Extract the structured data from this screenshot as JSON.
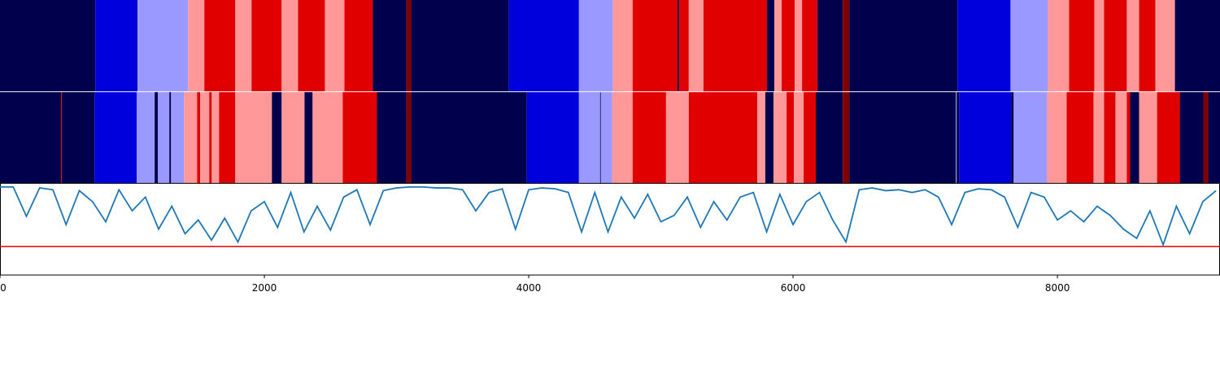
{
  "chart_data": [
    {
      "type": "segments",
      "xlim": [
        0,
        9230
      ],
      "class_colors": [
        "#00004c",
        "#0000dd",
        "#9999ff",
        "#ff9999",
        "#e00000",
        "#800000"
      ],
      "rows": [
        {
          "edges": [
            0,
            721,
            1041,
            1423,
            1546,
            1780,
            1903,
            2131,
            2255,
            2458,
            2606,
            2821,
            3074,
            3111,
            3850,
            4380,
            4638,
            4786,
            5125,
            5137,
            5211,
            5322,
            5803,
            5858,
            5914,
            6012,
            6068,
            6185,
            6376,
            6425,
            7244,
            7645,
            7928,
            8088,
            8279,
            8353,
            8525,
            8618,
            8741,
            8889,
            9230
          ],
          "classes": [
            0,
            1,
            2,
            3,
            4,
            3,
            4,
            3,
            4,
            3,
            4,
            0,
            5,
            0,
            1,
            2,
            3,
            4,
            0,
            4,
            3,
            4,
            0,
            3,
            4,
            3,
            4,
            0,
            5,
            0,
            1,
            2,
            3,
            4,
            3,
            4,
            3,
            4,
            3,
            0
          ]
        },
        {
          "edges": [
            0,
            462,
            468,
            715,
            1035,
            1170,
            1195,
            1281,
            1294,
            1392,
            1491,
            1515,
            1583,
            1602,
            1657,
            1780,
            2057,
            2131,
            2304,
            2365,
            2593,
            2852,
            3074,
            3111,
            3986,
            4380,
            4540,
            4546,
            4632,
            4786,
            5039,
            5211,
            5729,
            5790,
            5852,
            5951,
            6006,
            6080,
            6172,
            6376,
            6425,
            7232,
            7238,
            7256,
            7651,
            7669,
            7922,
            8070,
            8273,
            8353,
            8439,
            8525,
            8550,
            8618,
            8754,
            8926,
            9104,
            9141,
            9230
          ],
          "classes": [
            0,
            4,
            0,
            1,
            2,
            0,
            2,
            0,
            2,
            3,
            4,
            3,
            4,
            3,
            4,
            3,
            0,
            3,
            0,
            3,
            4,
            0,
            5,
            0,
            1,
            2,
            0,
            2,
            3,
            4,
            3,
            4,
            3,
            0,
            3,
            4,
            3,
            4,
            0,
            5,
            0,
            2,
            0,
            1,
            0,
            2,
            3,
            4,
            3,
            4,
            3,
            4,
            0,
            3,
            4,
            0,
            5,
            0
          ]
        }
      ]
    },
    {
      "type": "line",
      "xlim": [
        0,
        9230
      ],
      "ylim": [
        0,
        1
      ],
      "xticks": [
        0,
        2000,
        4000,
        6000,
        8000
      ],
      "color": "#1f77b4",
      "threshold": 0.31,
      "threshold_color": "#e00000",
      "x": [
        0,
        100,
        200,
        300,
        400,
        500,
        600,
        700,
        800,
        900,
        1000,
        1100,
        1200,
        1300,
        1400,
        1500,
        1600,
        1700,
        1800,
        1900,
        2000,
        2100,
        2200,
        2300,
        2400,
        2500,
        2600,
        2700,
        2800,
        2900,
        3000,
        3100,
        3200,
        3300,
        3400,
        3500,
        3600,
        3700,
        3800,
        3900,
        4000,
        4100,
        4200,
        4300,
        4400,
        4500,
        4600,
        4700,
        4800,
        4900,
        5000,
        5100,
        5200,
        5300,
        5400,
        5500,
        5600,
        5700,
        5800,
        5900,
        6000,
        6100,
        6200,
        6300,
        6400,
        6500,
        6600,
        6700,
        6800,
        6900,
        7000,
        7100,
        7200,
        7300,
        7400,
        7500,
        7600,
        7700,
        7800,
        7900,
        8000,
        8100,
        8200,
        8300,
        8400,
        8500,
        8600,
        8700,
        8800,
        8900,
        9000,
        9100,
        9200
      ],
      "values": [
        0.96,
        0.96,
        0.64,
        0.95,
        0.93,
        0.55,
        0.92,
        0.8,
        0.58,
        0.93,
        0.7,
        0.85,
        0.5,
        0.75,
        0.45,
        0.6,
        0.38,
        0.62,
        0.36,
        0.7,
        0.8,
        0.52,
        0.9,
        0.47,
        0.75,
        0.49,
        0.85,
        0.93,
        0.55,
        0.92,
        0.95,
        0.96,
        0.96,
        0.95,
        0.95,
        0.93,
        0.7,
        0.9,
        0.94,
        0.5,
        0.93,
        0.95,
        0.94,
        0.9,
        0.47,
        0.9,
        0.47,
        0.85,
        0.62,
        0.88,
        0.58,
        0.65,
        0.85,
        0.52,
        0.8,
        0.6,
        0.85,
        0.9,
        0.47,
        0.88,
        0.55,
        0.8,
        0.9,
        0.6,
        0.36,
        0.93,
        0.95,
        0.92,
        0.93,
        0.9,
        0.93,
        0.85,
        0.55,
        0.9,
        0.94,
        0.93,
        0.85,
        0.52,
        0.9,
        0.85,
        0.6,
        0.7,
        0.58,
        0.75,
        0.65,
        0.5,
        0.4,
        0.7,
        0.33,
        0.75,
        0.45,
        0.8,
        0.92
      ]
    }
  ]
}
